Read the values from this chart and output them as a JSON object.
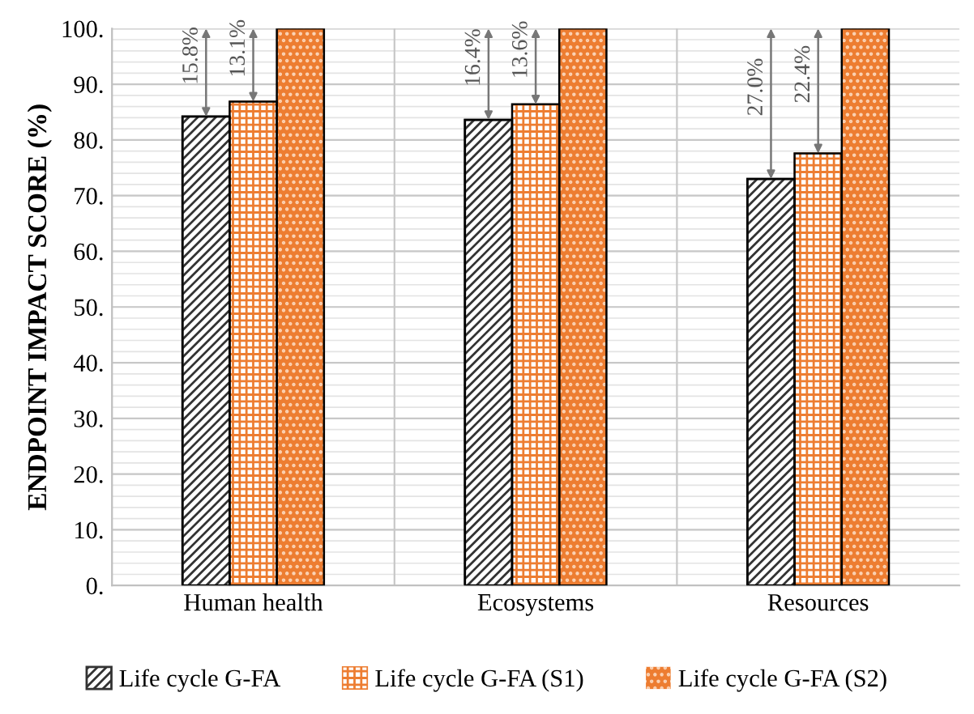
{
  "chart_data": {
    "type": "bar",
    "ylabel": "ENDPOINT IMPACT SCORE (%)",
    "categories": [
      "Human health",
      "Ecosystems",
      "Resources"
    ],
    "series": [
      {
        "name": "Life cycle G-FA",
        "color": "#333333",
        "values": [
          84.2,
          83.6,
          73.0
        ]
      },
      {
        "name": "Life cycle G-FA (S1)",
        "color": "#ed7d31",
        "values": [
          86.9,
          86.4,
          77.6
        ]
      },
      {
        "name": "Life cycle G-FA (S2)",
        "color": "#ed7d31",
        "values": [
          100,
          100,
          100
        ]
      }
    ],
    "ylim": [
      0,
      100
    ],
    "yticks": [
      {
        "value": 0,
        "label": "0."
      },
      {
        "value": 10,
        "label": "10."
      },
      {
        "value": 20,
        "label": "20."
      },
      {
        "value": 30,
        "label": "30."
      },
      {
        "value": 40,
        "label": "40."
      },
      {
        "value": 50,
        "label": "50."
      },
      {
        "value": 60,
        "label": "60."
      },
      {
        "value": 70,
        "label": "70."
      },
      {
        "value": 80,
        "label": "80."
      },
      {
        "value": 90,
        "label": "90."
      },
      {
        "value": 100,
        "label": "100."
      }
    ],
    "grid": true,
    "legend": "bottom",
    "annotations": [
      "15.8%",
      "13.1%",
      "16.4%",
      "13.6%",
      "27.0%",
      "22.4%"
    ]
  }
}
